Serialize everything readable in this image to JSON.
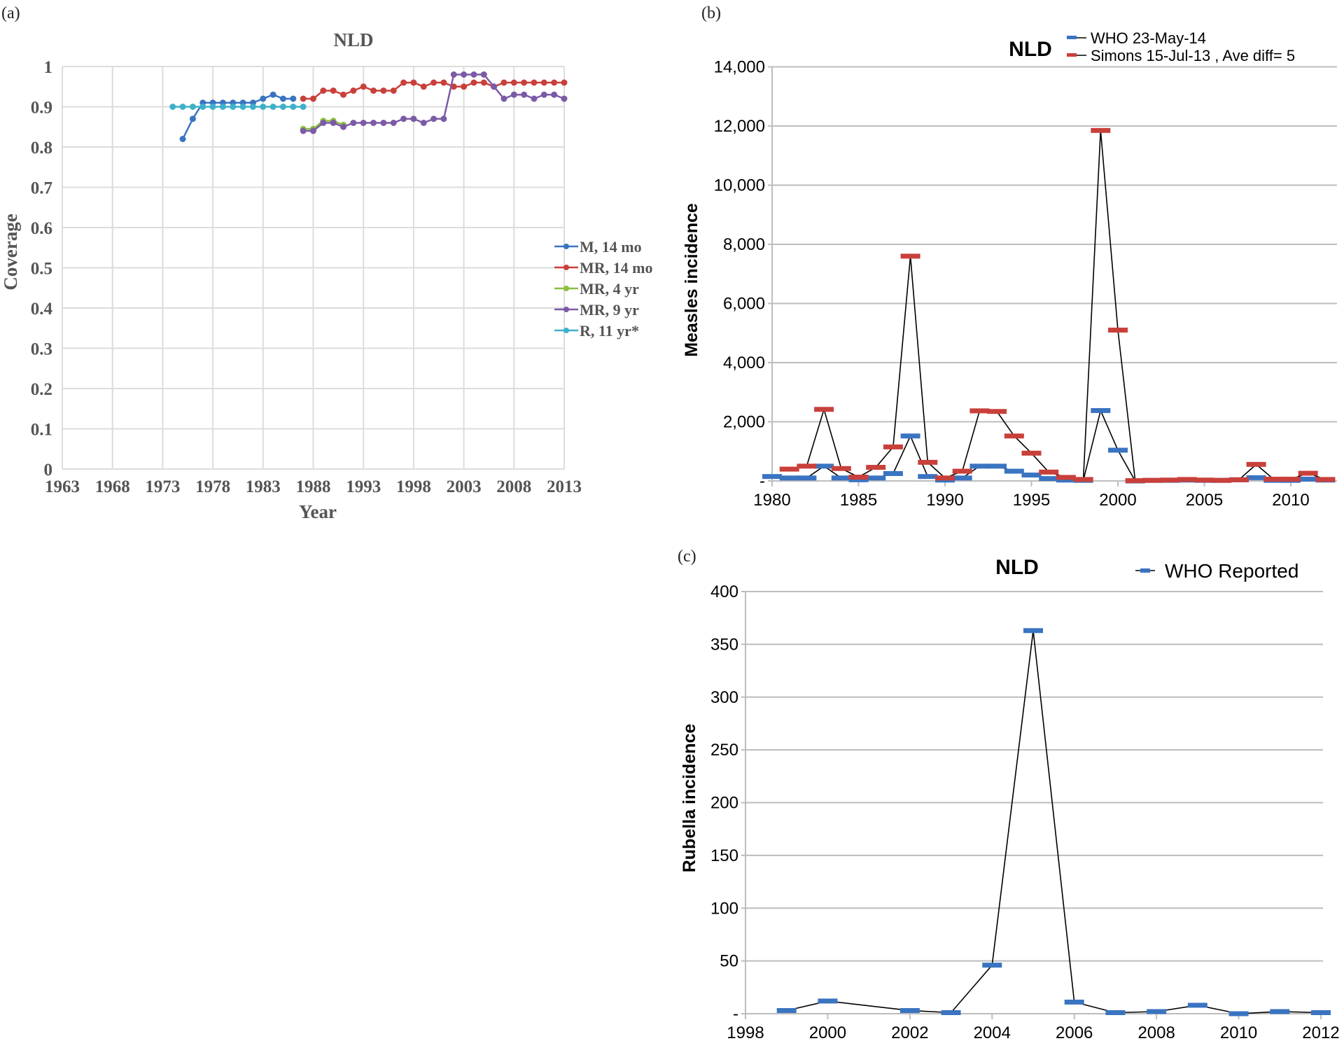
{
  "panels": {
    "a": "(a)",
    "b": "(b)",
    "c": "(c)"
  },
  "chart_data": [
    {
      "id": "a",
      "type": "line",
      "title": "NLD",
      "xlabel": "Year",
      "ylabel": "Coverage",
      "xlim": [
        1963,
        2013
      ],
      "ylim": [
        0,
        1
      ],
      "xticks": [
        1963,
        1968,
        1973,
        1978,
        1983,
        1988,
        1993,
        1998,
        2003,
        2008,
        2013
      ],
      "yticks": [
        0,
        0.1,
        0.2,
        0.3,
        0.4,
        0.5,
        0.6,
        0.7,
        0.8,
        0.9,
        1
      ],
      "ytick_labels": [
        "0",
        "0.1",
        "0.2",
        "0.3",
        "0.4",
        "0.5",
        "0.6",
        "0.7",
        "0.8",
        "0.9",
        "1"
      ],
      "grid": true,
      "legend_position": "right",
      "series": [
        {
          "name": "M, 14 mo",
          "color": "#3a74c1",
          "x": [
            1975,
            1976,
            1977,
            1978,
            1979,
            1980,
            1981,
            1982,
            1983,
            1984,
            1985,
            1986
          ],
          "y": [
            0.82,
            0.87,
            0.91,
            0.91,
            0.91,
            0.91,
            0.91,
            0.91,
            0.92,
            0.93,
            0.92,
            0.92
          ]
        },
        {
          "name": "MR, 14 mo",
          "color": "#c9403b",
          "x": [
            1987,
            1988,
            1989,
            1990,
            1991,
            1992,
            1993,
            1994,
            1995,
            1996,
            1997,
            1998,
            1999,
            2000,
            2001,
            2002,
            2003,
            2004,
            2005,
            2006,
            2007,
            2008,
            2009,
            2010,
            2011,
            2012,
            2013
          ],
          "y": [
            0.92,
            0.92,
            0.94,
            0.94,
            0.93,
            0.94,
            0.95,
            0.94,
            0.94,
            0.94,
            0.96,
            0.96,
            0.95,
            0.96,
            0.96,
            0.95,
            0.95,
            0.96,
            0.96,
            0.95,
            0.96,
            0.96,
            0.96,
            0.96,
            0.96,
            0.96,
            0.96
          ]
        },
        {
          "name": "MR, 4 yr",
          "color": "#8cbf3f",
          "x": [
            1987,
            1988,
            1989,
            1990,
            1991
          ],
          "y": [
            0.845,
            0.845,
            0.865,
            0.865,
            0.855
          ]
        },
        {
          "name": "MR, 9 yr",
          "color": "#7b5aa6",
          "x": [
            1987,
            1988,
            1989,
            1990,
            1991,
            1992,
            1993,
            1994,
            1995,
            1996,
            1997,
            1998,
            1999,
            2000,
            2001,
            2002,
            2003,
            2004,
            2005,
            2006,
            2007,
            2008,
            2009,
            2010,
            2011,
            2012,
            2013
          ],
          "y": [
            0.84,
            0.84,
            0.86,
            0.86,
            0.85,
            0.86,
            0.86,
            0.86,
            0.86,
            0.86,
            0.87,
            0.87,
            0.86,
            0.87,
            0.87,
            0.98,
            0.98,
            0.98,
            0.98,
            0.95,
            0.92,
            0.93,
            0.93,
            0.92,
            0.93,
            0.93,
            0.92
          ]
        },
        {
          "name": "R, 11 yr*",
          "color": "#3fb0c9",
          "x": [
            1974,
            1975,
            1976,
            1977,
            1978,
            1979,
            1980,
            1981,
            1982,
            1983,
            1984,
            1985,
            1986,
            1987
          ],
          "y": [
            0.9,
            0.9,
            0.9,
            0.9,
            0.9,
            0.9,
            0.9,
            0.9,
            0.9,
            0.9,
            0.9,
            0.9,
            0.9,
            0.9
          ]
        }
      ]
    },
    {
      "id": "b",
      "type": "line",
      "title": "NLD",
      "xlabel": "",
      "ylabel": "Measles incidence",
      "xlim": [
        1980,
        2013
      ],
      "ylim": [
        0,
        14000
      ],
      "xticks": [
        1980,
        1985,
        1990,
        1995,
        2000,
        2005,
        2010
      ],
      "yticks": [
        0,
        2000,
        4000,
        6000,
        8000,
        10000,
        12000,
        14000
      ],
      "ytick_labels": [
        "-",
        "2,000",
        "4,000",
        "6,000",
        "8,000",
        "10,000",
        "12,000",
        "14,000"
      ],
      "grid": true,
      "legend_position": "top-right",
      "series": [
        {
          "name": "WHO 23-May-14",
          "color": "#3a74c1",
          "x": [
            1980,
            1981,
            1982,
            1983,
            1984,
            1985,
            1986,
            1987,
            1988,
            1989,
            1990,
            1991,
            1992,
            1993,
            1994,
            1995,
            1996,
            1997,
            1998,
            1999,
            2000,
            2001,
            2002,
            2003,
            2004,
            2005,
            2006,
            2007,
            2008,
            2009,
            2010,
            2011,
            2012
          ],
          "y": [
            150,
            100,
            100,
            500,
            100,
            40,
            100,
            250,
            1520,
            150,
            30,
            100,
            500,
            500,
            330,
            200,
            80,
            30,
            20,
            2380,
            1040,
            0,
            20,
            20,
            30,
            20,
            20,
            40,
            110,
            20,
            20,
            60,
            30
          ]
        },
        {
          "name": "Simons 15-Jul-13 , Ave diff= 5",
          "color": "#c9403b",
          "x": [
            1981,
            1982,
            1983,
            1984,
            1985,
            1986,
            1987,
            1988,
            1989,
            1990,
            1991,
            1992,
            1993,
            1994,
            1995,
            1996,
            1997,
            1998,
            1999,
            2000,
            2001,
            2002,
            2003,
            2004,
            2005,
            2006,
            2007,
            2008,
            2009,
            2010,
            2011,
            2012
          ],
          "y": [
            400,
            500,
            2420,
            420,
            130,
            460,
            1150,
            7600,
            630,
            100,
            330,
            2370,
            2350,
            1520,
            940,
            300,
            120,
            50,
            11850,
            5100,
            10,
            20,
            30,
            50,
            30,
            20,
            40,
            560,
            60,
            60,
            260,
            50
          ]
        }
      ]
    },
    {
      "id": "c",
      "type": "line",
      "title": "NLD",
      "xlabel": "",
      "ylabel": "Rubella incidence",
      "xlim": [
        1998,
        2012
      ],
      "ylim": [
        0,
        400
      ],
      "xticks": [
        1998,
        2000,
        2002,
        2004,
        2006,
        2008,
        2010,
        2012
      ],
      "yticks": [
        0,
        50,
        100,
        150,
        200,
        250,
        300,
        350,
        400
      ],
      "ytick_labels": [
        "-",
        "50",
        "100",
        "150",
        "200",
        "250",
        "300",
        "350",
        "400"
      ],
      "grid": true,
      "legend_position": "top-right",
      "series": [
        {
          "name": "WHO Reported",
          "color": "#3a74c1",
          "x": [
            1999,
            2000,
            2002,
            2003,
            2004,
            2005,
            2006,
            2007,
            2008,
            2009,
            2010,
            2011,
            2012
          ],
          "y": [
            3,
            12,
            3,
            1,
            46,
            363,
            11,
            1,
            2,
            8,
            0,
            2,
            1
          ]
        }
      ]
    }
  ]
}
